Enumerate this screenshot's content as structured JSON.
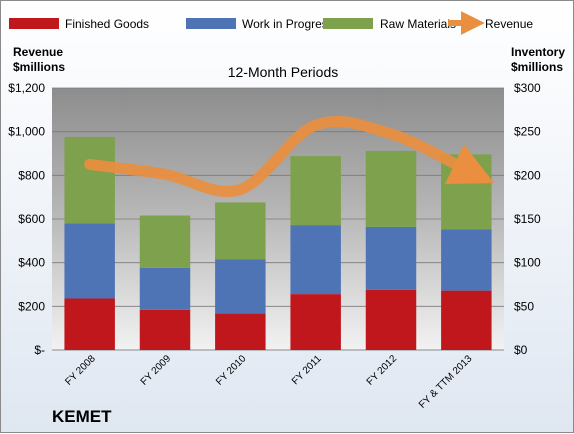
{
  "chart_data": {
    "type": "bar",
    "stacked": true,
    "brand": "KEMET",
    "title": "12-Month Periods",
    "left_axis_title": [
      "Revenue",
      "$millions"
    ],
    "right_axis_title": [
      "Inventory",
      "$millions"
    ],
    "categories": [
      "FY 2008",
      "FY 2009",
      "FY 2010",
      "FY 2011",
      "FY 2012",
      "FY & TTM 2013"
    ],
    "left_ticks": [
      "$-",
      "$200",
      "$400",
      "$600",
      "$800",
      "$1,000",
      "$1,200"
    ],
    "right_ticks": [
      "$0",
      "$50",
      "$100",
      "$150",
      "$200",
      "$250",
      "$300"
    ],
    "left_range": [
      0,
      1200
    ],
    "right_range": [
      0,
      300
    ],
    "series": [
      {
        "name": "Finished Goods",
        "color": "#c0171c",
        "axis": "right",
        "values": [
          59,
          46,
          42,
          64,
          69,
          68
        ]
      },
      {
        "name": "Work in Progress",
        "color": "#4f74b5",
        "axis": "right",
        "values": [
          86,
          48,
          62,
          79,
          72,
          70
        ]
      },
      {
        "name": "Raw Materials",
        "color": "#7ea14d",
        "axis": "right",
        "values": [
          99,
          60,
          65,
          79,
          87,
          86
        ]
      },
      {
        "name": "Revenue",
        "color": "#ea8e3f",
        "axis": "left",
        "type": "line",
        "values": [
          850,
          805,
          735,
          1030,
          990,
          825
        ]
      }
    ],
    "grid": true,
    "legend_position": "top"
  }
}
